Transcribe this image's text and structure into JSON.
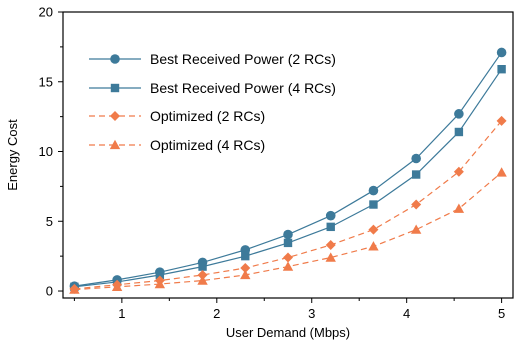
{
  "chart_data": {
    "type": "line",
    "title": "",
    "xlabel": "User Demand (Mbps)",
    "ylabel": "Energy Cost",
    "xlim": [
      0.38,
      5.12
    ],
    "ylim": [
      -0.5,
      20
    ],
    "xticks": [
      1,
      2,
      3,
      4,
      5
    ],
    "yticks": [
      0,
      5,
      10,
      15,
      20
    ],
    "grid": false,
    "legend_position": "top-left",
    "x": [
      0.5,
      0.95,
      1.4,
      1.85,
      2.3,
      2.75,
      3.2,
      3.65,
      4.1,
      4.55,
      5.0
    ],
    "series": [
      {
        "name": "Best Received Power (2 RCs)",
        "values": [
          0.35,
          0.8,
          1.35,
          2.05,
          2.95,
          4.05,
          5.4,
          7.2,
          9.5,
          12.7,
          17.1
        ],
        "color": "#3d7a9a",
        "marker": "circle",
        "line_style": "solid"
      },
      {
        "name": "Best Received Power (4 RCs)",
        "values": [
          0.3,
          0.65,
          1.15,
          1.75,
          2.5,
          3.45,
          4.6,
          6.2,
          8.35,
          11.4,
          15.9
        ],
        "color": "#3d7a9a",
        "marker": "square",
        "line_style": "solid"
      },
      {
        "name": "Optimized (2 RCs)",
        "values": [
          0.15,
          0.45,
          0.75,
          1.15,
          1.65,
          2.4,
          3.3,
          4.4,
          6.2,
          8.55,
          12.2
        ],
        "color": "#f07b4a",
        "marker": "diamond",
        "line_style": "dashed"
      },
      {
        "name": "Optimized (4 RCs)",
        "values": [
          0.1,
          0.3,
          0.5,
          0.75,
          1.15,
          1.75,
          2.4,
          3.2,
          4.4,
          5.9,
          8.5
        ],
        "color": "#f07b4a",
        "marker": "triangle",
        "line_style": "dashed"
      }
    ]
  }
}
